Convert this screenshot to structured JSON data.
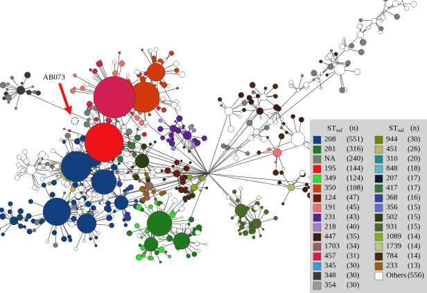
{
  "annotation": "AB073",
  "legend": {
    "headers": [
      {
        "label": "ST",
        "sub": "oaf",
        "n": "(n)"
      },
      {
        "label": "ST",
        "sub": "oaf",
        "n": "(n)"
      }
    ],
    "items": [
      {
        "label": "208",
        "n": "(551)",
        "color": "#123f80"
      },
      {
        "label": "281",
        "n": "(316)",
        "color": "#1f7a1f"
      },
      {
        "label": "NA",
        "n": "(240)",
        "color": "#7a7a7a"
      },
      {
        "label": "195",
        "n": "(144)",
        "color": "#ee1418"
      },
      {
        "label": "349",
        "n": "(124)",
        "color": "#33dd33"
      },
      {
        "label": "350",
        "n": "(108)",
        "color": "#d23a0c"
      },
      {
        "label": "124",
        "n": "(47)",
        "color": "#6b1a10"
      },
      {
        "label": "191",
        "n": "(45)",
        "color": "#f07070"
      },
      {
        "label": "231",
        "n": "(43)",
        "color": "#5b1f9a"
      },
      {
        "label": "218",
        "n": "(40)",
        "color": "#a080c8"
      },
      {
        "label": "447",
        "n": "(35)",
        "color": "#3d1a14"
      },
      {
        "label": "1703",
        "n": "(34)",
        "color": "#9a6060"
      },
      {
        "label": "457",
        "n": "(31)",
        "color": "#d42050"
      },
      {
        "label": "345",
        "n": "(30)",
        "color": "#3a9ad8"
      },
      {
        "label": "348",
        "n": "(30)",
        "color": "#3a3a3a"
      },
      {
        "label": "354",
        "n": "(30)",
        "color": "#9a9a9a"
      },
      {
        "label": "944",
        "n": "(30)",
        "color": "#808000"
      },
      {
        "label": "451",
        "n": "(26)",
        "color": "#b8b860"
      },
      {
        "label": "310",
        "n": "(20)",
        "color": "#1a8a9a"
      },
      {
        "label": "848",
        "n": "(18)",
        "color": "#5ab8d0"
      },
      {
        "label": "207",
        "n": "(17)",
        "color": "#101830"
      },
      {
        "label": "417",
        "n": "(17)",
        "color": "#2a7a3a"
      },
      {
        "label": "368",
        "n": "(16)",
        "color": "#3040a0"
      },
      {
        "label": "356",
        "n": "(15)",
        "color": "#6070d0"
      },
      {
        "label": "502",
        "n": "(15)",
        "color": "#2a4010"
      },
      {
        "label": "931",
        "n": "(15)",
        "color": "#4a6a28"
      },
      {
        "label": "1089",
        "n": "(14)",
        "color": "#8aaa20"
      },
      {
        "label": "1739",
        "n": "(14)",
        "color": "#b8c880"
      },
      {
        "label": "784",
        "n": "(14)",
        "color": "#4a2a10"
      },
      {
        "label": "233",
        "n": "(13)",
        "color": "#9a6010"
      },
      {
        "label": "Others",
        "n": "(556)",
        "color": "#ffffff"
      }
    ]
  }
}
